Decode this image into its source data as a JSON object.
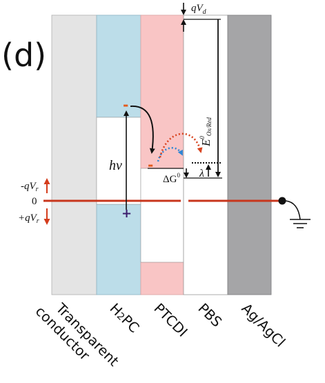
{
  "panel_label": "(d)",
  "colors": {
    "conductor": "#e4e4e4",
    "h2pc": "#bcdde9",
    "ptcdi": "#f9c5c5",
    "pbs": "#ffffff",
    "electrode": "#a5a5a7",
    "fermi_line": "#c8361c",
    "red_arrow": "#d43c1c",
    "charge_minus": "#e35b1c",
    "charge_plus": "#3c1d6e",
    "dotted_blue": "#2f86d4",
    "dotted_red": "#d84420"
  },
  "layers": [
    {
      "key": "conductor",
      "label_line1": "Transparent",
      "label_line2": "conductor"
    },
    {
      "key": "h2pc",
      "label_main": "H",
      "label_sub": "2",
      "label_rest": "PC"
    },
    {
      "key": "ptcdi",
      "label": "PTCDI"
    },
    {
      "key": "pbs",
      "label": "PBS"
    },
    {
      "key": "electrode",
      "label": "Ag/AgCl"
    }
  ],
  "energy_labels": {
    "zero": "0",
    "neg_qvr": "-qV",
    "neg_qvr_sub": "r",
    "pos_qvr": "+qV",
    "pos_qvr_sub": "r",
    "qvd": "qV",
    "qvd_sub": "d",
    "hv": "hv",
    "delta_g": "ΔG",
    "delta_g_sup": "0",
    "lambda": "λ",
    "e_ox_red": "E",
    "e_ox_red_sup": "0",
    "e_ox_red_sub": "Ox/Red"
  },
  "charges": {
    "minus_h2pc": "-",
    "minus_ptcdi": "-",
    "plus_h2pc": "+"
  },
  "icons": {
    "ground": "ground-icon",
    "contact_dot": "contact-dot-icon"
  }
}
